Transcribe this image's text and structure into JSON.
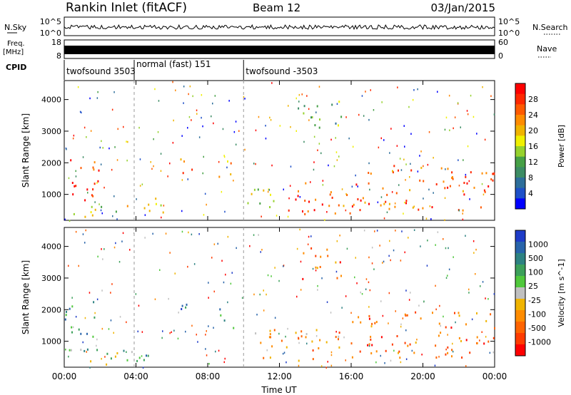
{
  "header": {
    "station": "Rankin Inlet (fitACF)",
    "beam": "Beam 12",
    "date": "03/Jan/2015"
  },
  "strip_panels": {
    "nsky_label": "N.Sky",
    "nsky_ticks": [
      "10^5",
      "10^0"
    ],
    "nsearch_label": "N.Search",
    "nsearch_ticks": [
      "10^5",
      "10^0"
    ],
    "freq_label_top": "Freq.",
    "freq_label_unit": "[MHz]",
    "freq_ticks": [
      "18",
      "8"
    ],
    "nave_label": "Nave",
    "nave_ticks": [
      "60",
      "0"
    ],
    "cpid_label": "CPID",
    "cpid_segments": [
      {
        "name": "twofsound",
        "id": "3503",
        "start_h": 0.0,
        "end_h": 3.9
      },
      {
        "name": "normal (fast)",
        "id": "151",
        "start_h": 3.9,
        "end_h": 10.0
      },
      {
        "name": "twofsound",
        "id": "-3503",
        "start_h": 10.0,
        "end_h": 24.0
      }
    ]
  },
  "chart_data": [
    {
      "type": "heatmap",
      "title": "",
      "xlabel": "",
      "ylabel": "Slant Range [km]",
      "x_ticks": [
        "00:00",
        "04:00",
        "08:00",
        "12:00",
        "16:00",
        "20:00",
        "00:00"
      ],
      "xlim_hours": [
        0,
        24
      ],
      "ylim": [
        180,
        4600
      ],
      "y_ticks": [
        1000,
        2000,
        3000,
        4000
      ],
      "colorbar": {
        "label": "Power [dB]",
        "ticks": [
          "4",
          "8",
          "12",
          "16",
          "20",
          "24",
          "28"
        ],
        "colors": [
          "#0000ff",
          "#1e50c8",
          "#2d6e9b",
          "#3c8c64",
          "#46a046",
          "#96d22d",
          "#f0f000",
          "#f0b400",
          "#ff8c00",
          "#ff5a00",
          "#ff2800",
          "#ff0000"
        ]
      },
      "echo_regions": [
        {
          "t0": 0.0,
          "t1": 1.9,
          "r0": 700,
          "r1": 2300,
          "level": 10
        },
        {
          "t0": 0.5,
          "t1": 3.0,
          "r0": 250,
          "r1": 800,
          "level": 6
        },
        {
          "t0": 3.0,
          "t1": 5.6,
          "r0": 350,
          "r1": 900,
          "level": 7
        },
        {
          "t0": 6.4,
          "t1": 7.2,
          "r0": 1300,
          "r1": 2200,
          "level": 9
        },
        {
          "t0": 8.6,
          "t1": 9.4,
          "r0": 1300,
          "r1": 2200,
          "level": 7
        },
        {
          "t0": 10.2,
          "t1": 12.0,
          "r0": 500,
          "r1": 1500,
          "level": 5
        },
        {
          "t0": 12.0,
          "t1": 16.0,
          "r0": 400,
          "r1": 1400,
          "level": 9
        },
        {
          "t0": 16.0,
          "t1": 24.0,
          "r0": 500,
          "r1": 2000,
          "level": 9
        },
        {
          "t0": 13.0,
          "t1": 15.5,
          "r0": 3000,
          "r1": 4000,
          "level": 4
        }
      ]
    },
    {
      "type": "heatmap",
      "title": "",
      "xlabel": "Time UT",
      "ylabel": "Slant Range [km]",
      "x_ticks": [
        "00:00",
        "04:00",
        "08:00",
        "12:00",
        "16:00",
        "20:00",
        "00:00"
      ],
      "xlim_hours": [
        0,
        24
      ],
      "ylim": [
        180,
        4600
      ],
      "y_ticks": [
        1000,
        2000,
        3000,
        4000
      ],
      "colorbar": {
        "label": "Velocity [m s^-1]",
        "ticks": [
          "1000",
          "500",
          "100",
          "25",
          "-25",
          "-100",
          "-500",
          "-1000"
        ],
        "colors": [
          "#1e3cc8",
          "#2864aa",
          "#2d8282",
          "#3ca05a",
          "#50c83c",
          "#c0c0c0",
          "#f0b400",
          "#ff8c00",
          "#ff6400",
          "#ff3c00",
          "#ff0000"
        ]
      },
      "echo_regions": [
        {
          "t0": 0.0,
          "t1": 1.9,
          "r0": 700,
          "r1": 2300,
          "level": 3
        },
        {
          "t0": 0.5,
          "t1": 3.0,
          "r0": 250,
          "r1": 800,
          "level": 4
        },
        {
          "t0": 3.0,
          "t1": 5.6,
          "r0": 350,
          "r1": 900,
          "level": 3
        },
        {
          "t0": 6.4,
          "t1": 7.2,
          "r0": 1300,
          "r1": 2200,
          "level": 2
        },
        {
          "t0": 8.6,
          "t1": 9.4,
          "r0": 1300,
          "r1": 2200,
          "level": 3
        },
        {
          "t0": 10.2,
          "t1": 12.0,
          "r0": 500,
          "r1": 1500,
          "level": 7
        },
        {
          "t0": 12.0,
          "t1": 16.0,
          "r0": 400,
          "r1": 1400,
          "level": 7
        },
        {
          "t0": 16.0,
          "t1": 24.0,
          "r0": 500,
          "r1": 2000,
          "level": 8
        },
        {
          "t0": 13.0,
          "t1": 15.5,
          "r0": 3000,
          "r1": 4000,
          "level": 8
        }
      ]
    }
  ]
}
